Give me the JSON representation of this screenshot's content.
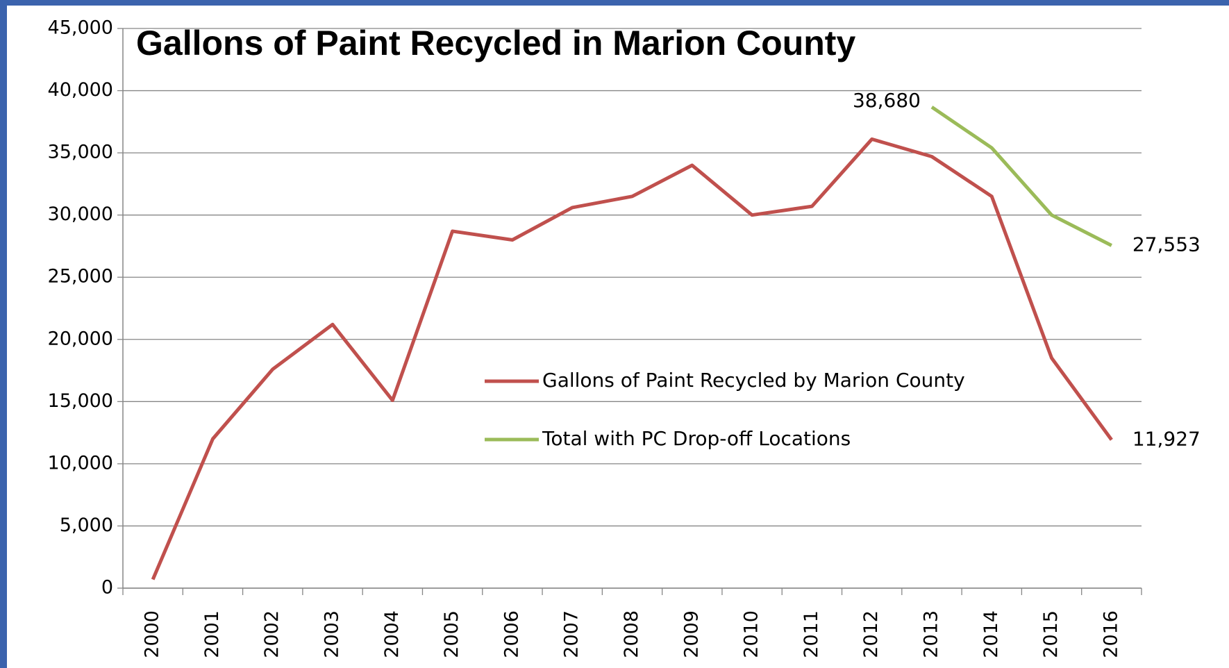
{
  "chart_data": {
    "type": "line",
    "title": "Gallons of Paint Recycled in Marion County",
    "categories": [
      "2000",
      "2001",
      "2002",
      "2003",
      "2004",
      "2005",
      "2006",
      "2007",
      "2008",
      "2009",
      "2010",
      "2011",
      "2012",
      "2013",
      "2014",
      "2015",
      "2016"
    ],
    "series": [
      {
        "name": "Gallons of Paint Recycled by Marion County",
        "color": "#c0504d",
        "values": [
          700,
          12000,
          17600,
          21200,
          15100,
          28700,
          28000,
          30600,
          31500,
          34000,
          30000,
          30700,
          36100,
          34700,
          31500,
          18500,
          11927
        ],
        "value_labels": [
          null,
          null,
          null,
          null,
          null,
          null,
          null,
          null,
          null,
          null,
          null,
          null,
          null,
          null,
          null,
          null,
          "11,927"
        ]
      },
      {
        "name": "Total with PC Drop-off Locations",
        "color": "#9bbb59",
        "values": [
          null,
          null,
          null,
          null,
          null,
          null,
          null,
          null,
          null,
          null,
          null,
          null,
          null,
          38680,
          35400,
          30000,
          27553
        ],
        "value_labels": [
          null,
          null,
          null,
          null,
          null,
          null,
          null,
          null,
          null,
          null,
          null,
          null,
          null,
          "38,680",
          null,
          null,
          "27,553"
        ]
      }
    ],
    "ylim": [
      0,
      45000
    ],
    "yticks": [
      0,
      {
        "value": 5000,
        "label": "5,000"
      },
      {
        "value": 10000,
        "label": "10,000"
      },
      {
        "value": 15000,
        "label": "15,000"
      },
      {
        "value": 20000,
        "label": "20,000"
      },
      {
        "value": 25000,
        "label": "25,000"
      },
      {
        "value": 30000,
        "label": "30,000"
      },
      {
        "value": 35000,
        "label": "35,000"
      },
      {
        "value": 40000,
        "label": "40,000"
      },
      {
        "value": 45000,
        "label": "45,000"
      }
    ],
    "grid": true
  }
}
